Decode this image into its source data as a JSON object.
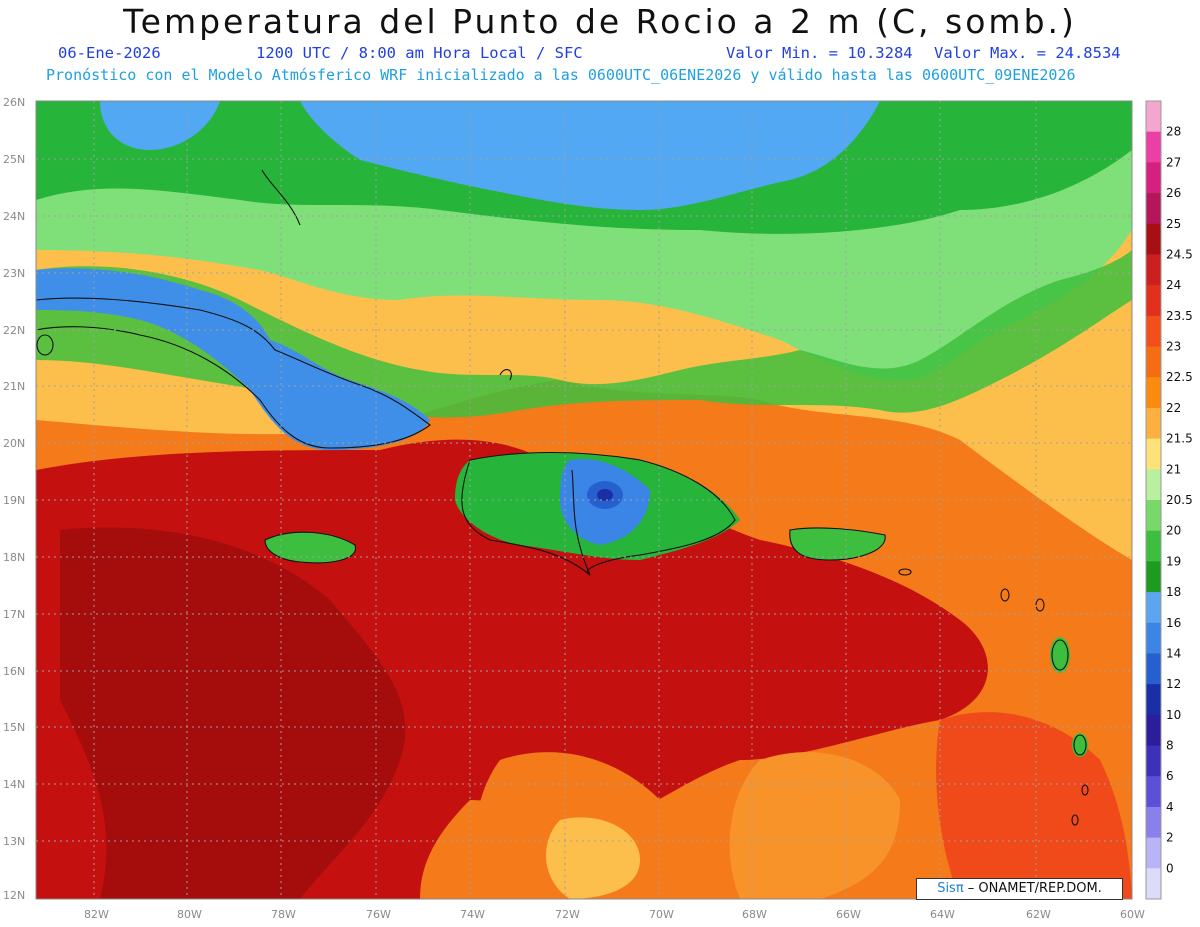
{
  "header": {
    "title": "Temperatura del Punto de Rocio a 2 m (C, somb.)",
    "date": "06-Ene-2026",
    "time": "1200 UTC / 8:00 am Hora Local / SFC",
    "valor_min": "Valor Min. = 10.3284",
    "valor_max": "Valor Max. = 24.8534",
    "model_line": "Pronóstico con el Modelo Atmósferico WRF inicializado a las 0600UTC_06ENE2026 y válido hasta las  0600UTC_09ENE2026"
  },
  "axes": {
    "lon_labels": [
      "82W",
      "80W",
      "78W",
      "76W",
      "74W",
      "72W",
      "70W",
      "68W",
      "66W",
      "64W",
      "62W",
      "60W"
    ],
    "lat_labels": [
      "26N",
      "25N",
      "24N",
      "23N",
      "22N",
      "21N",
      "20N",
      "19N",
      "18N",
      "17N",
      "16N",
      "15N",
      "14N",
      "13N",
      "12N"
    ]
  },
  "colorbar": {
    "labels": [
      "28",
      "27",
      "26",
      "25",
      "24.5",
      "24",
      "23.5",
      "23",
      "22.5",
      "22",
      "21.5",
      "21",
      "20.5",
      "20",
      "19",
      "18",
      "16",
      "14",
      "12",
      "10",
      "8",
      "6",
      "4",
      "2",
      "0"
    ],
    "colors": [
      "#f4a6cf",
      "#ec3fa6",
      "#d6207f",
      "#b3175a",
      "#a50f15",
      "#cc1f1f",
      "#e2301c",
      "#f24f1a",
      "#f46d12",
      "#f98c10",
      "#fbb040",
      "#fde27a",
      "#b8f0a0",
      "#78d86a",
      "#3ebe3e",
      "#1e9a1e",
      "#5aa7f0",
      "#3a85e6",
      "#2660cf",
      "#1a2fa6",
      "#2c1d9c",
      "#3b32b8",
      "#5b50d6",
      "#8a80ec",
      "#b9b4f5",
      "#dcdcfa"
    ]
  },
  "colors": {
    "map_red": "#c4100f",
    "map_orange": "#f47a1a",
    "map_yellow": "#fcbf4c",
    "map_lightgreen": "#7fe07a",
    "map_green": "#26b53a",
    "map_blue": "#52a8f2"
  },
  "credit": {
    "brand": "Sisπ",
    "text": " – ONAMET/REP.DOM."
  }
}
